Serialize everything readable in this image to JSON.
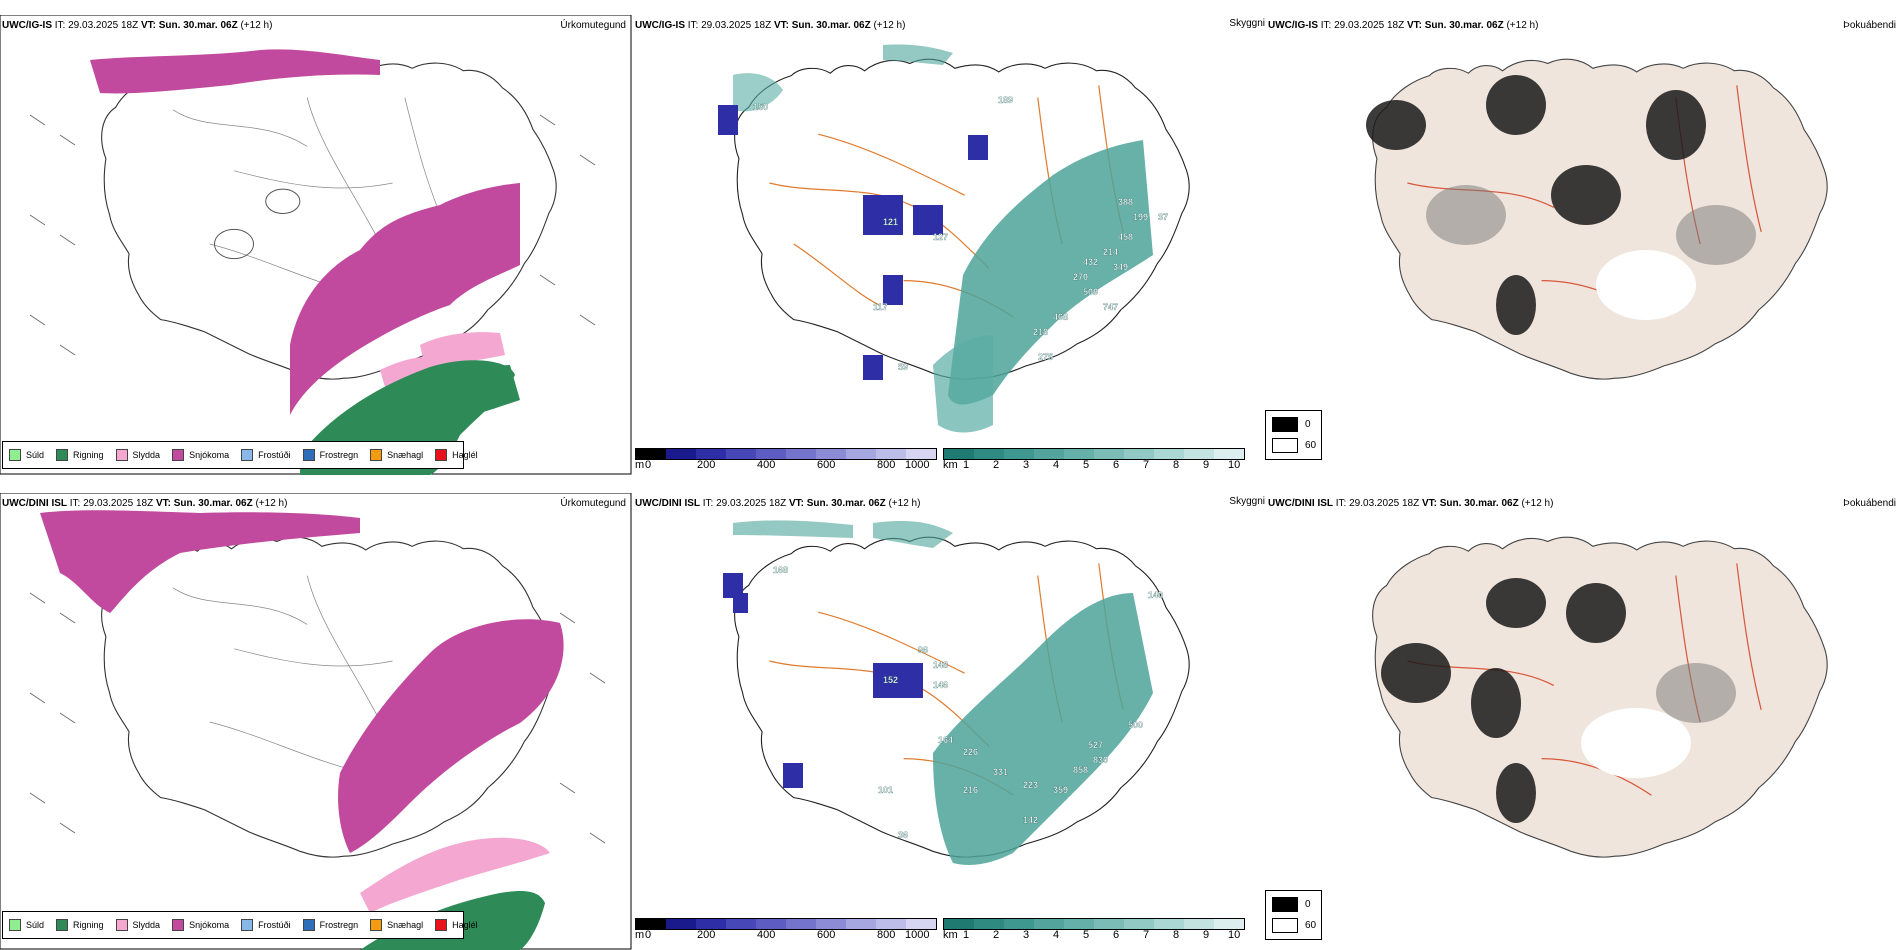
{
  "rows": [
    {
      "model": "UWC/IG-IS",
      "it_label": "IT:",
      "it_value": "29.03.2025 18Z",
      "vt_label": "VT:",
      "vt_value": "Sun. 30.mar. 06Z",
      "lead": "(+12 h)"
    },
    {
      "model": "UWC/DINI ISL",
      "it_label": "IT:",
      "it_value": "29.03.2025 18Z",
      "vt_label": "VT:",
      "vt_value": "Sun. 30.mar. 06Z",
      "lead": "(+12 h)"
    }
  ],
  "panel_titles": {
    "precip_type": "Úrkomutegund",
    "cloud": "Skyggni",
    "fog": "Þokuábendi"
  },
  "ptype_legend": [
    {
      "label": "Súld",
      "color": "#90ee90"
    },
    {
      "label": "Rigning",
      "color": "#2e8b57"
    },
    {
      "label": "Slydda",
      "color": "#f4a7d0"
    },
    {
      "label": "Snjókoma",
      "color": "#c24a9e"
    },
    {
      "label": "Frostúði",
      "color": "#87b8e8"
    },
    {
      "label": "Frostregn",
      "color": "#2f6eb8"
    },
    {
      "label": "Snæhagl",
      "color": "#f39c12"
    },
    {
      "label": "Haglél",
      "color": "#e8121c"
    }
  ],
  "colorbars": {
    "height_unit": "m",
    "height_ticks": [
      "0",
      "200",
      "400",
      "600",
      "800",
      "1000"
    ],
    "height_colors": [
      "#000000",
      "#1a1a8c",
      "#2e2ea6",
      "#4747b8",
      "#5c5cc2",
      "#7474cc",
      "#8c8cd6",
      "#a6a6e0",
      "#bdbde9",
      "#d6d6f3"
    ],
    "vis_unit": "km",
    "vis_ticks": [
      "1",
      "2",
      "3",
      "4",
      "5",
      "6",
      "7",
      "8",
      "9",
      "10"
    ],
    "vis_colors": [
      "#1f7a72",
      "#2f8a82",
      "#3f9890",
      "#52a49d",
      "#66b0aa",
      "#7bbcb7",
      "#92c9c5",
      "#aad6d3",
      "#c3e3e1",
      "#dcefee"
    ]
  },
  "fog_legend": [
    {
      "label": "0",
      "color": "#000000"
    },
    {
      "label": "60",
      "color": "#ffffff"
    }
  ],
  "cloud_labels_top": [
    "150",
    "189",
    "127",
    "121",
    "388",
    "199",
    "37",
    "458",
    "214",
    "432",
    "349",
    "270",
    "509",
    "747",
    "468",
    "218",
    "117",
    "59",
    "275"
  ],
  "cloud_labels_bottom": [
    "168",
    "96",
    "148",
    "152",
    "146",
    "140",
    "164",
    "226",
    "331",
    "216",
    "223",
    "500",
    "527",
    "830",
    "858",
    "359",
    "142",
    "101",
    "36"
  ]
}
